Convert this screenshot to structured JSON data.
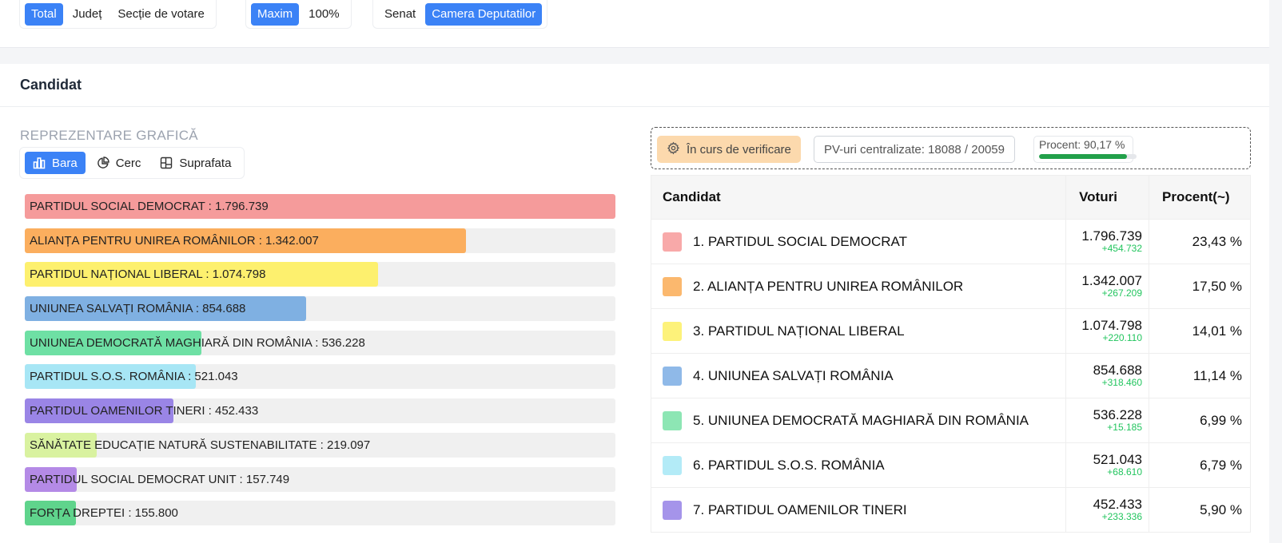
{
  "filters": {
    "scope": [
      "Total",
      "Județ",
      "Secție de votare"
    ],
    "scope_active": "Total",
    "scale": [
      "Maxim",
      "100%"
    ],
    "scale_active": "Maxim",
    "chamber": [
      "Senat",
      "Camera Deputatilor"
    ],
    "chamber_active": "Camera Deputatilor"
  },
  "section": {
    "title": "Candidat"
  },
  "chart_controls": {
    "title": "REPREZENTARE GRAFICĂ",
    "views": [
      {
        "label": "Bara",
        "icon": "bar-chart-icon",
        "active": true
      },
      {
        "label": "Cerc",
        "icon": "pie-chart-icon",
        "active": false
      },
      {
        "label": "Suprafata",
        "icon": "area-grid-icon",
        "active": false
      }
    ]
  },
  "chart_data": {
    "type": "bar",
    "categories": [
      "PARTIDUL SOCIAL DEMOCRAT",
      "ALIANȚA PENTRU UNIREA ROMÂNILOR",
      "PARTIDUL NAȚIONAL LIBERAL",
      "UNIUNEA SALVAȚI ROMÂNIA",
      "UNIUNEA DEMOCRATĂ MAGHIARĂ DIN ROMÂNIA",
      "PARTIDUL S.O.S. ROMÂNIA",
      "PARTIDUL OAMENILOR TINERI",
      "SĂNĂTATE EDUCAȚIE NATURĂ SUSTENABILITATE",
      "PARTIDUL SOCIAL DEMOCRAT UNIT",
      "FORȚA DREPTEI"
    ],
    "values": [
      1796739,
      1342007,
      1074798,
      854688,
      536228,
      521043,
      452433,
      219097,
      157749,
      155800
    ],
    "value_labels": [
      "1.796.739",
      "1.342.007",
      "1.074.798",
      "854.688",
      "536.228",
      "521.043",
      "452.433",
      "219.097",
      "157.749",
      "155.800"
    ],
    "colors": [
      "#f59b9b",
      "#fbae5e",
      "#fdf06e",
      "#7fb0e2",
      "#6ee0a4",
      "#a7e6f5",
      "#9a85e6",
      "#d9f2a0",
      "#b48ae6",
      "#5fd48c"
    ],
    "xlim": [
      0,
      1796739
    ]
  },
  "status": {
    "verification": "În curs de verificare",
    "pv": "PV-uri centralizate: 18088 / 20059",
    "percent_text": "Procent: 90,17 %",
    "percent_value": 90.17
  },
  "table": {
    "headers": [
      "Candidat",
      "Voturi",
      "Procent(~)"
    ],
    "rows": [
      {
        "name": "1. PARTIDUL SOCIAL DEMOCRAT",
        "votes": "1.796.739",
        "delta": "+454.732",
        "percent": "23,43 %",
        "color": "#f8a9a9"
      },
      {
        "name": "2. ALIANȚA PENTRU UNIREA ROMÂNILOR",
        "votes": "1.342.007",
        "delta": "+267.209",
        "percent": "17,50 %",
        "color": "#fbb86e"
      },
      {
        "name": "3. PARTIDUL NAȚIONAL LIBERAL",
        "votes": "1.074.798",
        "delta": "+220.110",
        "percent": "14,01 %",
        "color": "#fdf27a"
      },
      {
        "name": "4. UNIUNEA SALVAȚI ROMÂNIA",
        "votes": "854.688",
        "delta": "+318.460",
        "percent": "11,14 %",
        "color": "#8fb9e8"
      },
      {
        "name": "5. UNIUNEA DEMOCRATĂ MAGHIARĂ DIN ROMÂNIA",
        "votes": "536.228",
        "delta": "+15.185",
        "percent": "6,99 %",
        "color": "#8de6b4"
      },
      {
        "name": "6. PARTIDUL S.O.S. ROMÂNIA",
        "votes": "521.043",
        "delta": "+68.610",
        "percent": "6,79 %",
        "color": "#b3ebf7"
      },
      {
        "name": "7. PARTIDUL OAMENILOR TINERI",
        "votes": "452.433",
        "delta": "+233.336",
        "percent": "5,90 %",
        "color": "#a594ea"
      }
    ]
  }
}
